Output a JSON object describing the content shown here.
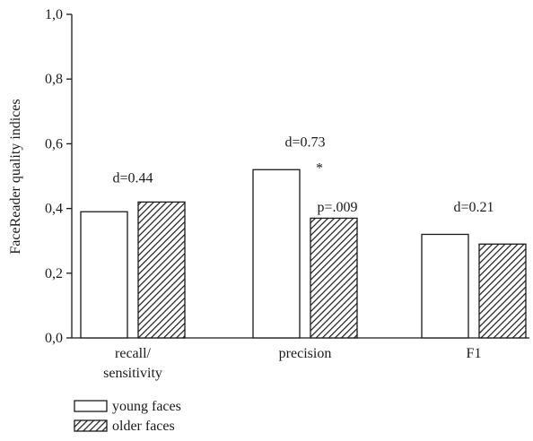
{
  "chart_data": {
    "type": "bar",
    "ylabel": "FaceReader quality indices",
    "ylim": [
      0,
      1.0
    ],
    "yticks": [
      "0,0",
      "0,2",
      "0,4",
      "0,6",
      "0,8",
      "1,0"
    ],
    "categories": [
      [
        "recall/",
        "sensitivity"
      ],
      [
        "precision"
      ],
      [
        "F1"
      ]
    ],
    "series": [
      {
        "name": "young faces",
        "values": [
          0.39,
          0.52,
          0.32
        ],
        "pattern": "none",
        "fill": "#ffffff"
      },
      {
        "name": "older faces",
        "values": [
          0.42,
          0.37,
          0.29
        ],
        "pattern": "hatch",
        "fill": "#1a1a1a"
      }
    ],
    "annotations": [
      {
        "group": 0,
        "text": "d=0.44",
        "y": 0.495
      },
      {
        "group": 1,
        "text": "d=0.73",
        "y": 0.605
      },
      {
        "group": 1,
        "text": "*",
        "y": 0.525
      },
      {
        "group": 1,
        "text": "p=.009",
        "y": 0.405
      },
      {
        "group": 2,
        "text": "d=0.21",
        "y": 0.405
      }
    ],
    "legend_position": "bottom-left"
  }
}
